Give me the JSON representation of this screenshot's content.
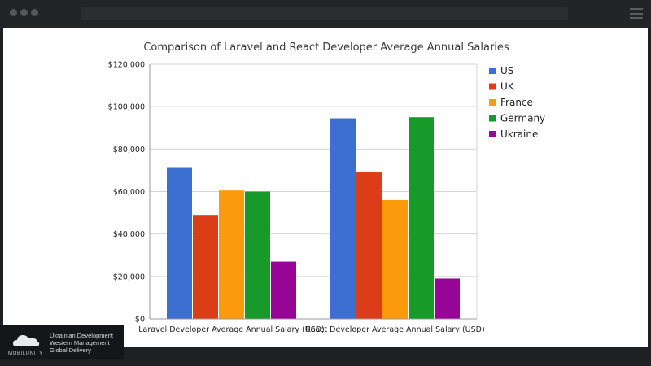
{
  "brand": {
    "name": "MOBILUNITY",
    "tagline": [
      "Ukrainian Development",
      "Western Management",
      "Global Delivery"
    ]
  },
  "chart_data": {
    "type": "bar",
    "title": "Comparison of Laravel and React Developer Average Annual Salaries",
    "categories": [
      "Laravel Developer Average Annual Salary (USD)",
      "React Developer Average Annual Salary (USD)"
    ],
    "series": [
      {
        "name": "US",
        "color": "#3d6fd1",
        "values": [
          71500,
          94500
        ]
      },
      {
        "name": "UK",
        "color": "#dc3d19",
        "values": [
          49000,
          69000
        ]
      },
      {
        "name": "France",
        "color": "#fb9a0a",
        "values": [
          60500,
          56000
        ]
      },
      {
        "name": "Germany",
        "color": "#189a2a",
        "values": [
          60000,
          95000
        ]
      },
      {
        "name": "Ukraine",
        "color": "#970597",
        "values": [
          27000,
          19000
        ]
      }
    ],
    "ylim": [
      0,
      120000
    ],
    "yticks": [
      0,
      20000,
      40000,
      60000,
      80000,
      100000,
      120000
    ],
    "ytick_labels": [
      "$0",
      "$20,000",
      "$40,000",
      "$60,000",
      "$80,000",
      "$100,000",
      "$120,000"
    ],
    "grid": true,
    "legend_position": "right"
  }
}
